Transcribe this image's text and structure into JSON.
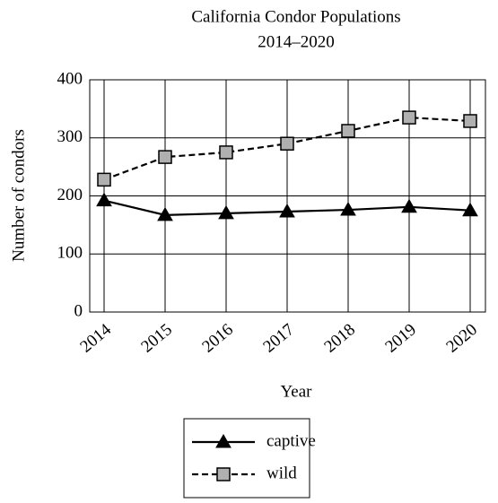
{
  "chart_data": {
    "type": "line",
    "title": "California Condor Populations",
    "subtitle": "2014–2020",
    "x_label": "Year",
    "y_label": "Number of condors",
    "categories": [
      "2014",
      "2015",
      "2016",
      "2017",
      "2018",
      "2019",
      "2020"
    ],
    "series": [
      {
        "name": "captive",
        "color": "#000000",
        "marker": "triangle",
        "dashed": false,
        "values": [
          192,
          167,
          170,
          173,
          176,
          181,
          175
        ]
      },
      {
        "name": "wild",
        "color": "#b0b0b0",
        "marker": "square",
        "dashed": true,
        "values": [
          228,
          267,
          275,
          290,
          312,
          335,
          329
        ]
      }
    ],
    "ylim": [
      0,
      400
    ],
    "yticks": [
      0,
      100,
      200,
      300,
      400
    ],
    "grid": true,
    "legend": "bottom"
  }
}
